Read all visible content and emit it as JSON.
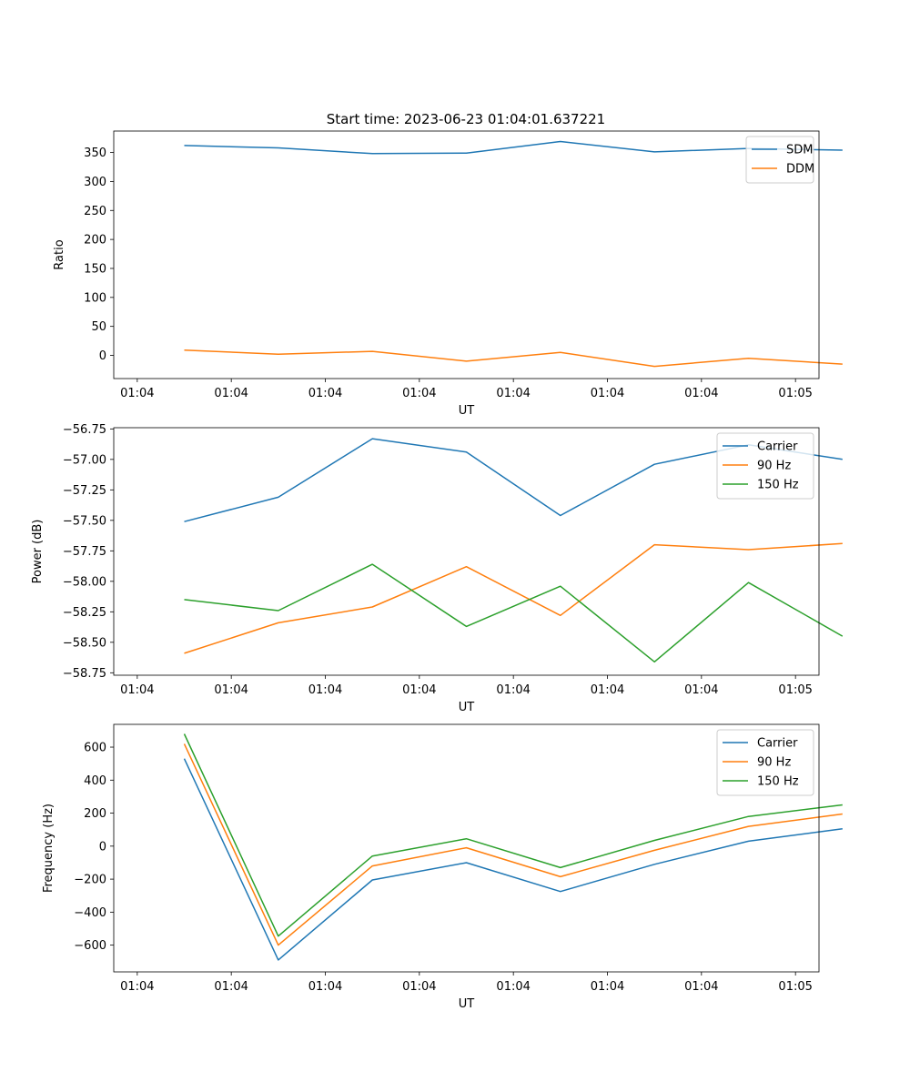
{
  "figure": {
    "title": "Start time: 2023-06-23 01:04:01.637221"
  },
  "chart_data": [
    {
      "type": "line",
      "xlabel": "UT",
      "ylabel": "Ratio",
      "x_tick_labels": [
        "01:04",
        "01:04",
        "01:04",
        "01:04",
        "01:04",
        "01:04",
        "01:04",
        "01:05"
      ],
      "x_tick_pos": [
        -0.5,
        0.5,
        1.5,
        2.5,
        3.5,
        4.5,
        5.5,
        6.5
      ],
      "xlim": [
        -0.75,
        6.75
      ],
      "x": [
        0,
        1,
        2,
        3,
        4,
        5,
        6,
        7
      ],
      "y_ticks": [
        0,
        50,
        100,
        150,
        200,
        250,
        300,
        350
      ],
      "y_tick_labels": [
        "0",
        "50",
        "100",
        "150",
        "200",
        "250",
        "300",
        "350"
      ],
      "ylim": [
        -40,
        387
      ],
      "grid": false,
      "legend_position": "upper right",
      "series": [
        {
          "name": "SDM",
          "color": "#1f77b4",
          "values": [
            362,
            358,
            348,
            349,
            369,
            351,
            357,
            354
          ]
        },
        {
          "name": "DDM",
          "color": "#ff7f0e",
          "values": [
            9,
            2,
            7,
            -10,
            5,
            -19,
            -5,
            -15
          ]
        }
      ]
    },
    {
      "type": "line",
      "xlabel": "UT",
      "ylabel": "Power (dB)",
      "x_tick_labels": [
        "01:04",
        "01:04",
        "01:04",
        "01:04",
        "01:04",
        "01:04",
        "01:04",
        "01:05"
      ],
      "x_tick_pos": [
        -0.5,
        0.5,
        1.5,
        2.5,
        3.5,
        4.5,
        5.5,
        6.5
      ],
      "xlim": [
        -0.75,
        6.75
      ],
      "x": [
        0,
        1,
        2,
        3,
        4,
        5,
        6,
        7
      ],
      "y_ticks": [
        -58.75,
        -58.5,
        -58.25,
        -58.0,
        -57.75,
        -57.5,
        -57.25,
        -57.0,
        -56.75
      ],
      "y_tick_labels": [
        "−58.75",
        "−58.50",
        "−58.25",
        "−58.00",
        "−57.75",
        "−57.50",
        "−57.25",
        "−57.00",
        "−56.75"
      ],
      "ylim": [
        -58.77,
        -56.74
      ],
      "grid": false,
      "legend_position": "upper right",
      "series": [
        {
          "name": "Carrier",
          "color": "#1f77b4",
          "values": [
            -57.51,
            -57.31,
            -56.83,
            -56.94,
            -57.46,
            -57.04,
            -56.88,
            -57.0
          ]
        },
        {
          "name": "90 Hz",
          "color": "#ff7f0e",
          "values": [
            -58.59,
            -58.34,
            -58.21,
            -57.88,
            -58.28,
            -57.7,
            -57.74,
            -57.69
          ]
        },
        {
          "name": "150 Hz",
          "color": "#2ca02c",
          "values": [
            -58.15,
            -58.24,
            -57.86,
            -58.37,
            -58.04,
            -58.66,
            -58.01,
            -58.45
          ]
        }
      ]
    },
    {
      "type": "line",
      "xlabel": "UT",
      "ylabel": "Frequency (Hz)",
      "x_tick_labels": [
        "01:04",
        "01:04",
        "01:04",
        "01:04",
        "01:04",
        "01:04",
        "01:04",
        "01:05"
      ],
      "x_tick_pos": [
        -0.5,
        0.5,
        1.5,
        2.5,
        3.5,
        4.5,
        5.5,
        6.5
      ],
      "xlim": [
        -0.75,
        6.75
      ],
      "x": [
        0,
        1,
        2,
        3,
        4,
        5,
        6,
        7
      ],
      "y_ticks": [
        -600,
        -400,
        -200,
        0,
        200,
        400,
        600
      ],
      "y_tick_labels": [
        "−600",
        "−400",
        "−200",
        "0",
        "200",
        "400",
        "600"
      ],
      "ylim": [
        -762,
        738
      ],
      "grid": false,
      "legend_position": "upper right",
      "series": [
        {
          "name": "Carrier",
          "color": "#1f77b4",
          "values": [
            530,
            -690,
            -205,
            -100,
            -275,
            -110,
            30,
            105
          ]
        },
        {
          "name": "90 Hz",
          "color": "#ff7f0e",
          "values": [
            620,
            -600,
            -120,
            -10,
            -185,
            -25,
            120,
            195
          ]
        },
        {
          "name": "150 Hz",
          "color": "#2ca02c",
          "values": [
            680,
            -545,
            -60,
            45,
            -130,
            35,
            180,
            250
          ]
        }
      ]
    }
  ]
}
